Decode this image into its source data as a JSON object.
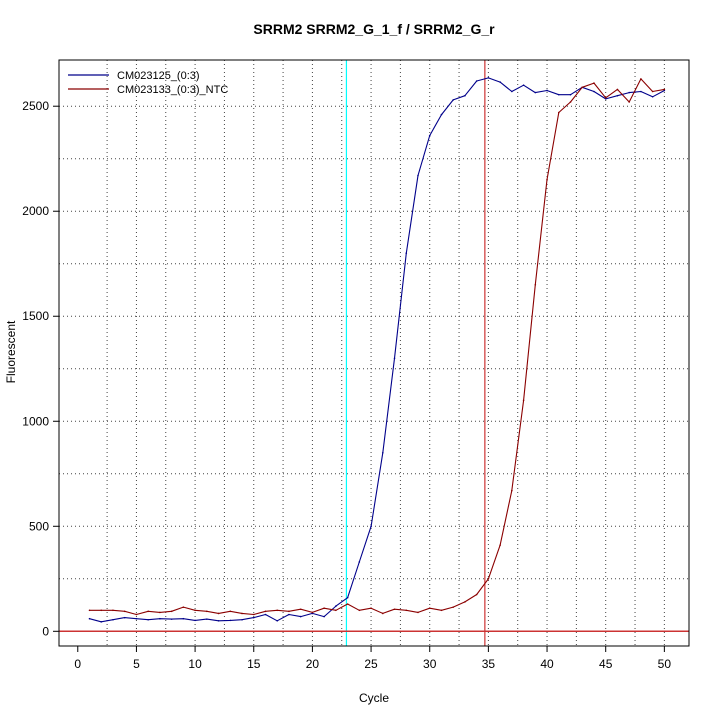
{
  "chart_data": {
    "type": "line",
    "title": "SRRM2  SRRM2_G_1_f / SRRM2_G_r",
    "xlabel": "Cycle",
    "ylabel": "Fluorescent",
    "xlim": [
      -1.6,
      52.1
    ],
    "ylim": [
      -70,
      2720
    ],
    "xticks": [
      0,
      5,
      10,
      15,
      20,
      25,
      30,
      35,
      40,
      45,
      50
    ],
    "yticks": [
      0,
      500,
      1000,
      1500,
      2000,
      2500
    ],
    "grid": "dotted",
    "legend_position": "top-left",
    "threshold_y": 0,
    "threshold_color": "#cc3333",
    "vertical_markers": [
      {
        "x": 22.9,
        "color": "#00ffff"
      },
      {
        "x": 34.7,
        "color": "#cc3333"
      }
    ],
    "series": [
      {
        "name": "CM023125_(0:3)",
        "color": "#00008b",
        "x": [
          1,
          2,
          3,
          4,
          5,
          6,
          7,
          8,
          9,
          10,
          11,
          12,
          13,
          14,
          15,
          16,
          17,
          18,
          19,
          20,
          21,
          22,
          23,
          24,
          25,
          26,
          27,
          28,
          29,
          30,
          31,
          32,
          33,
          34,
          35,
          36,
          37,
          38,
          39,
          40,
          41,
          42,
          43,
          44,
          45,
          46,
          47,
          48,
          49,
          50
        ],
        "values": [
          60,
          45,
          55,
          65,
          60,
          55,
          60,
          58,
          60,
          52,
          58,
          50,
          52,
          55,
          65,
          80,
          50,
          80,
          70,
          85,
          70,
          120,
          160,
          330,
          500,
          850,
          1300,
          1800,
          2170,
          2360,
          2460,
          2530,
          2550,
          2620,
          2635,
          2615,
          2570,
          2600,
          2565,
          2575,
          2555,
          2555,
          2590,
          2570,
          2535,
          2550,
          2565,
          2570,
          2545,
          2575
        ]
      },
      {
        "name": "CM023133_(0:3)_NTC",
        "color": "#8b0000",
        "x": [
          1,
          2,
          3,
          4,
          5,
          6,
          7,
          8,
          9,
          10,
          11,
          12,
          13,
          14,
          15,
          16,
          17,
          18,
          19,
          20,
          21,
          22,
          23,
          24,
          25,
          26,
          27,
          28,
          29,
          30,
          31,
          32,
          33,
          34,
          35,
          36,
          37,
          38,
          39,
          40,
          41,
          42,
          43,
          44,
          45,
          46,
          47,
          48,
          49,
          50
        ],
        "values": [
          100,
          100,
          100,
          95,
          80,
          95,
          90,
          95,
          115,
          100,
          95,
          85,
          95,
          85,
          80,
          95,
          100,
          95,
          105,
          90,
          110,
          100,
          130,
          100,
          110,
          85,
          105,
          100,
          90,
          110,
          100,
          115,
          140,
          175,
          250,
          410,
          670,
          1100,
          1650,
          2150,
          2470,
          2520,
          2590,
          2610,
          2540,
          2580,
          2520,
          2630,
          2570,
          2580
        ]
      }
    ]
  }
}
